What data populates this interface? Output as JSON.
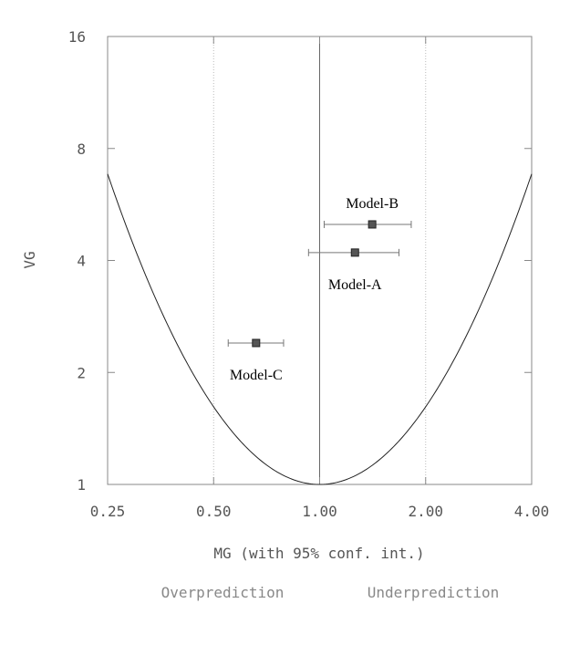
{
  "chart_data": {
    "type": "scatter",
    "xlabel": "MG (with 95% conf. int.)",
    "ylabel": "VG",
    "x_scale": "log",
    "y_scale": "log",
    "xlim": [
      0.25,
      4.0
    ],
    "ylim": [
      1,
      16
    ],
    "x_ticks": [
      {
        "value": 0.25,
        "label": "0.25"
      },
      {
        "value": 0.5,
        "label": "0.50"
      },
      {
        "value": 1.0,
        "label": "1.00"
      },
      {
        "value": 2.0,
        "label": "2.00"
      },
      {
        "value": 4.0,
        "label": "4.00"
      }
    ],
    "y_ticks": [
      {
        "value": 1,
        "label": "1"
      },
      {
        "value": 2,
        "label": "2"
      },
      {
        "value": 4,
        "label": "4"
      },
      {
        "value": 8,
        "label": "8"
      },
      {
        "value": 16,
        "label": "16"
      }
    ],
    "reference_curve": "VG = exp((ln MG)^2)",
    "vertical_lines": [
      0.5,
      1.0,
      2.0
    ],
    "points": [
      {
        "label": "Model-A",
        "mg": 1.26,
        "mg_ci": [
          0.93,
          1.68
        ],
        "vg": 4.2,
        "label_pos": "below"
      },
      {
        "label": "Model-B",
        "mg": 1.41,
        "mg_ci": [
          1.03,
          1.82
        ],
        "vg": 5.0,
        "label_pos": "above"
      },
      {
        "label": "Model-C",
        "mg": 0.66,
        "mg_ci": [
          0.55,
          0.79
        ],
        "vg": 2.4,
        "label_pos": "below"
      }
    ],
    "annotations": {
      "left": "Overprediction",
      "right": "Underprediction"
    }
  }
}
